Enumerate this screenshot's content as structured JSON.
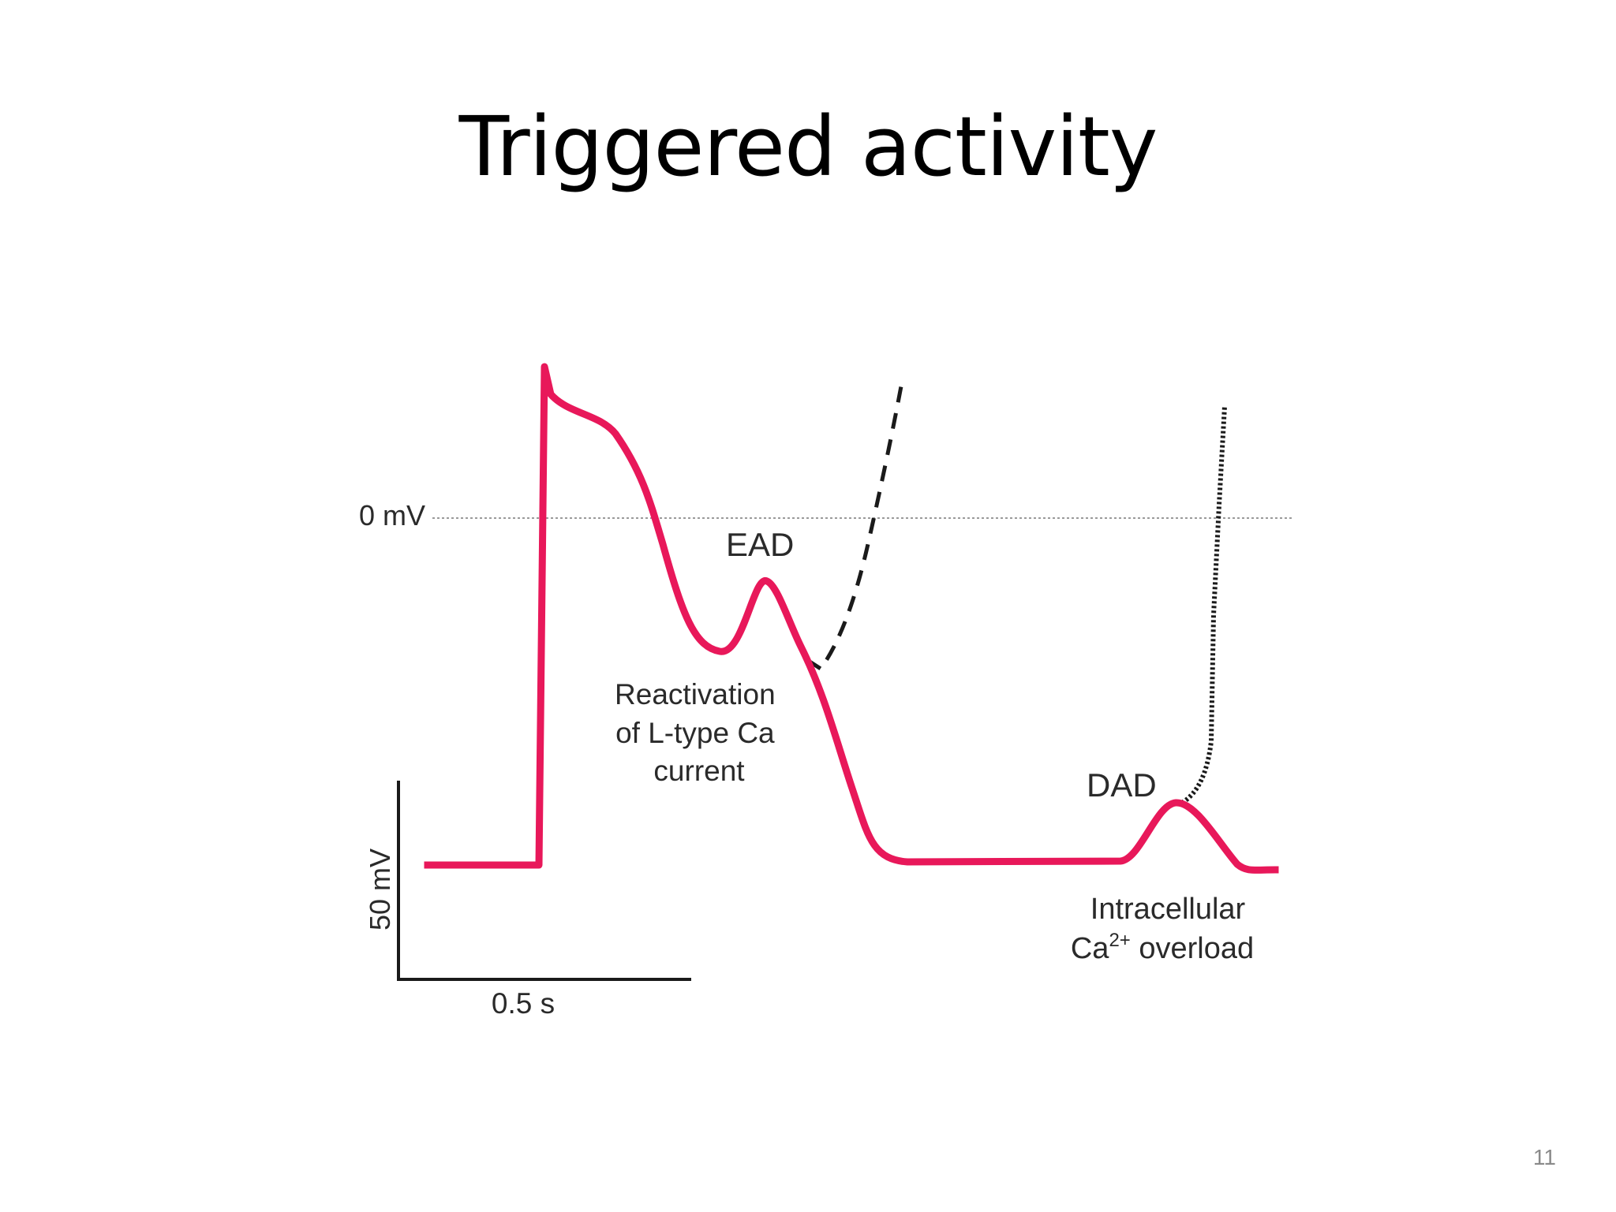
{
  "slide": {
    "title": "Triggered activity",
    "page_number": "11"
  },
  "diagram": {
    "zero_label": "0 mV",
    "ead_label": "EAD",
    "ead_caption": [
      "Reactivation",
      "of L-type Ca",
      "current"
    ],
    "dad_label": "DAD",
    "dad_caption_line1": "Intracellular",
    "dad_caption_line2_prefix": "Ca",
    "dad_caption_line2_sup": "2+",
    "dad_caption_line2_suffix": " overload",
    "scale_y_label": "50 mV",
    "scale_x_label": "0.5 s"
  },
  "colors": {
    "trace": "#e8185a",
    "triggered": "#1a1a1a",
    "reference_line": "#9a9a9a"
  }
}
